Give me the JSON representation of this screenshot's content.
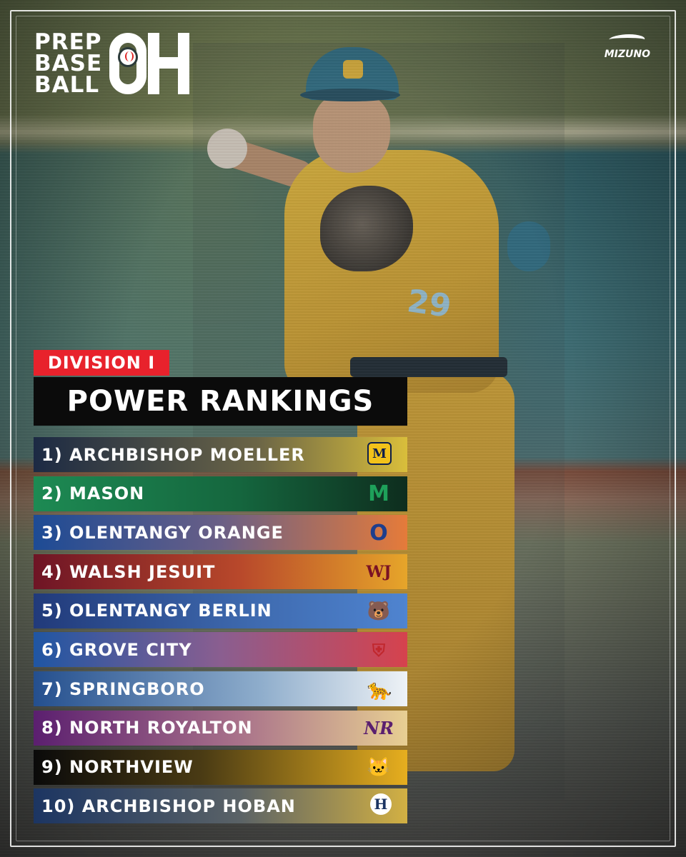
{
  "brand": {
    "logo_text_lines": [
      "PREP",
      "BASE",
      "BALL"
    ],
    "logo_state": "OH",
    "sponsor": "MIZUNO"
  },
  "player": {
    "jersey_number": "29"
  },
  "header": {
    "division": "DIVISION I",
    "title": "POWER RANKINGS"
  },
  "rankings": [
    {
      "label": "1) ARCHBISHOP MOELLER",
      "logo_icon": "moeller-m-icon",
      "logo_text": "M"
    },
    {
      "label": "2) MASON",
      "logo_icon": "mason-comets-icon",
      "logo_text": "M"
    },
    {
      "label": "3) OLENTANGY ORANGE",
      "logo_icon": "olentangy-orange-icon",
      "logo_text": "O"
    },
    {
      "label": "4) WALSH JESUIT",
      "logo_icon": "walsh-jesuit-icon",
      "logo_text": "WJ"
    },
    {
      "label": "5) OLENTANGY BERLIN",
      "logo_icon": "bear-icon",
      "logo_text": "🐻"
    },
    {
      "label": "6) GROVE CITY",
      "logo_icon": "grove-city-shield-icon",
      "logo_text": "⛨"
    },
    {
      "label": "7) SPRINGBORO",
      "logo_icon": "panther-icon",
      "logo_text": "🐆"
    },
    {
      "label": "8) NORTH ROYALTON",
      "logo_icon": "north-royalton-icon",
      "logo_text": "NR"
    },
    {
      "label": "9) NORTHVIEW",
      "logo_icon": "wildcat-icon",
      "logo_text": "🐱"
    },
    {
      "label": "10) ARCHBISHOP HOBAN",
      "logo_icon": "hoban-h-icon",
      "logo_text": "H"
    }
  ],
  "colors": {
    "division_badge": "#e8222c",
    "title_badge": "#0b0b0b"
  }
}
